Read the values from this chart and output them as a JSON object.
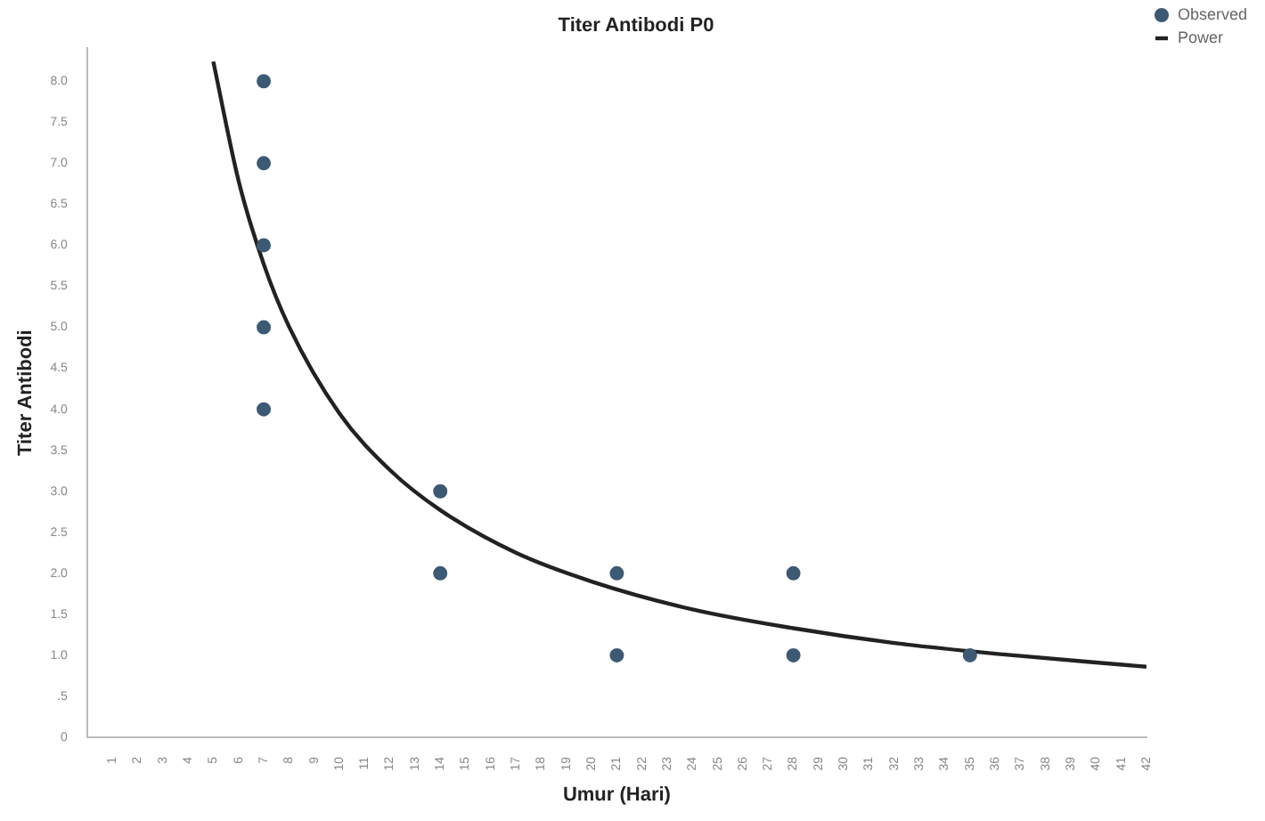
{
  "chart_data": {
    "type": "scatter",
    "title": "Titer Antibodi P0",
    "xlabel": "Umur (Hari)",
    "ylabel": "Titer Antibodi",
    "series": [
      {
        "name": "Observed",
        "marker": "circle",
        "color": "#3d5a75",
        "x": [
          7,
          7,
          7,
          7,
          7,
          14,
          14,
          21,
          21,
          28,
          28,
          35
        ],
        "values": [
          8,
          7,
          6,
          5,
          4,
          3,
          2,
          2,
          1,
          2,
          1,
          1
        ]
      },
      {
        "name": "Power",
        "type": "line",
        "marker": "none",
        "color": "#222222",
        "x": [
          5,
          6,
          7,
          8,
          10,
          12,
          14,
          17,
          20,
          24,
          28,
          32,
          36,
          42
        ],
        "values": [
          8.24,
          6.79,
          5.77,
          5.01,
          3.95,
          3.26,
          2.77,
          2.25,
          1.9,
          1.56,
          1.33,
          1.15,
          1.02,
          0.86
        ]
      }
    ],
    "legend": "top right",
    "grid": false,
    "xlim": [
      0,
      42
    ],
    "xticks": [
      1,
      2,
      3,
      4,
      5,
      6,
      7,
      8,
      9,
      10,
      11,
      12,
      13,
      14,
      15,
      16,
      17,
      18,
      19,
      20,
      21,
      22,
      23,
      24,
      25,
      26,
      27,
      28,
      29,
      30,
      31,
      32,
      33,
      34,
      35,
      36,
      37,
      38,
      39,
      40,
      41,
      42
    ],
    "ylim": [
      0,
      8.4
    ],
    "yticks": [
      0,
      {
        "value": 0.5,
        "label": ".5"
      },
      {
        "value": 1,
        "label": "1.0"
      },
      {
        "value": 1.5,
        "label": "1.5"
      },
      {
        "value": 2,
        "label": "2.0"
      },
      {
        "value": 2.5,
        "label": "2.5"
      },
      {
        "value": 3,
        "label": "3.0"
      },
      {
        "value": 3.5,
        "label": "3.5"
      },
      {
        "value": 4,
        "label": "4.0"
      },
      {
        "value": 4.5,
        "label": "4.5"
      },
      {
        "value": 5,
        "label": "5.0"
      },
      {
        "value": 5.5,
        "label": "5.5"
      },
      {
        "value": 6,
        "label": "6.0"
      },
      {
        "value": 6.5,
        "label": "6.5"
      },
      {
        "value": 7,
        "label": "7.0"
      },
      {
        "value": 7.5,
        "label": "7.5"
      },
      {
        "value": 8,
        "label": "8.0"
      }
    ]
  }
}
